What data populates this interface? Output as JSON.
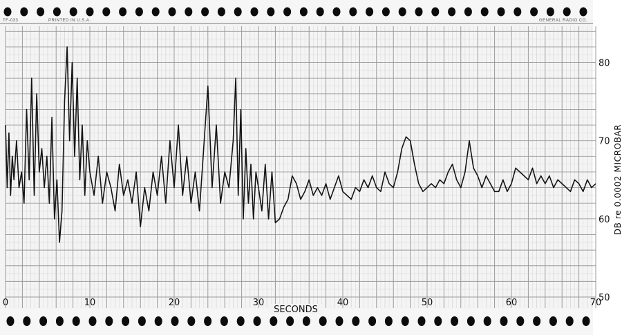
{
  "header": {
    "left_code": "TF-033",
    "printed": "PRINTED IN U.S.A.",
    "maker": "GENERAL RADIO CO."
  },
  "chart_data": {
    "type": "line",
    "title": "",
    "xlabel": "SECONDS",
    "ylabel": "DB re 0.0002 MICROBAR",
    "xlim": [
      0,
      70
    ],
    "ylim": [
      50,
      85
    ],
    "grid": true,
    "x_ticks": [
      0,
      10,
      20,
      30,
      40,
      50,
      60,
      70
    ],
    "y_ticks": [
      50,
      60,
      70,
      80
    ],
    "colors": {
      "trace": "#141414",
      "grid_major": "#9a9a9a",
      "grid_minor": "#d2d2d2",
      "paper": "#f1f1f1"
    },
    "series": [
      {
        "x": [
          0,
          0.2,
          0.4,
          0.6,
          0.8,
          1.0,
          1.3,
          1.6,
          1.9,
          2.2,
          2.5,
          2.8,
          3.1,
          3.4,
          3.7,
          4.0,
          4.3,
          4.6,
          4.9,
          5.2,
          5.5,
          5.8,
          6.1,
          6.4,
          6.7,
          7.0,
          7.3,
          7.6,
          7.9,
          8.2,
          8.5,
          8.8,
          9.1,
          9.4,
          9.7,
          10.0,
          10.5,
          11.0,
          11.5,
          12.0,
          12.5,
          13.0,
          13.5,
          14.0,
          14.5,
          15.0,
          15.5,
          16.0,
          16.5,
          17.0,
          17.5,
          18.0,
          18.5,
          19.0,
          19.5,
          20.0,
          20.5,
          21.0,
          21.5,
          22.0,
          22.5,
          23.0,
          23.5,
          24.0,
          24.5,
          25.0,
          25.5,
          26.0,
          26.5,
          27.0,
          27.3,
          27.6,
          27.9,
          28.2,
          28.5,
          28.8,
          29.1,
          29.4,
          29.7,
          30.0,
          30.4,
          30.8,
          31.2,
          31.6,
          32.0,
          32.5,
          33.0,
          33.5,
          34.0,
          34.5,
          35.0,
          35.5,
          36.0,
          36.5,
          37.0,
          37.5,
          38.0,
          38.5,
          39.0,
          39.5,
          40.0,
          40.5,
          41.0,
          41.5,
          42.0,
          42.5,
          43.0,
          43.5,
          44.0,
          44.5,
          45.0,
          45.5,
          46.0,
          46.5,
          47.0,
          47.5,
          48.0,
          48.5,
          49.0,
          49.5,
          50.0,
          50.5,
          51.0,
          51.5,
          52.0,
          52.5,
          53.0,
          53.5,
          54.0,
          54.5,
          55.0,
          55.5,
          56.0,
          56.5,
          57.0,
          57.5,
          58.0,
          58.5,
          59.0,
          59.5,
          60.0,
          60.5,
          61.0,
          61.5,
          62.0,
          62.5,
          63.0,
          63.5,
          64.0,
          64.5,
          65.0,
          65.5,
          66.0,
          66.5,
          67.0,
          67.5,
          68.0,
          68.5,
          69.0,
          69.5,
          70.0
        ],
        "y": [
          72,
          64,
          71,
          63,
          68,
          65,
          70,
          64,
          66,
          62,
          74,
          65,
          78,
          63,
          76,
          66,
          69,
          64,
          68,
          62,
          73,
          60,
          65,
          57,
          61,
          75,
          82,
          70,
          80,
          68,
          78,
          65,
          72,
          63,
          70,
          66,
          63,
          68,
          62,
          66,
          64,
          61,
          67,
          63,
          65,
          62,
          66,
          59,
          64,
          61,
          66,
          63,
          68,
          62,
          70,
          64,
          72,
          63,
          68,
          62,
          66,
          61,
          69,
          77,
          64,
          72,
          62,
          66,
          64,
          70,
          78,
          63,
          74,
          60,
          69,
          62,
          67,
          60,
          66,
          64,
          61,
          67,
          60,
          66,
          59.5,
          60,
          61.5,
          62.5,
          65.5,
          64.5,
          62.5,
          63.5,
          65,
          63,
          64,
          63,
          64.5,
          62.5,
          64,
          65.5,
          63.5,
          63,
          62.5,
          64,
          63.5,
          65,
          64,
          65.5,
          64,
          63.5,
          66,
          64.5,
          64,
          66,
          69,
          70.5,
          70,
          67,
          64.5,
          63.5,
          64,
          64.5,
          64,
          65,
          64.5,
          66,
          67,
          65,
          64,
          66,
          70,
          66.5,
          65.5,
          64,
          65.5,
          64.5,
          63.5,
          63.5,
          65,
          63.5,
          64.5,
          66.5,
          66,
          65.5,
          65,
          66.5,
          64.5,
          65.5,
          64.5,
          65.5,
          64,
          65,
          64.5,
          64,
          63.5,
          65,
          64.5,
          63.5,
          65,
          64,
          64.5
        ]
      }
    ]
  }
}
